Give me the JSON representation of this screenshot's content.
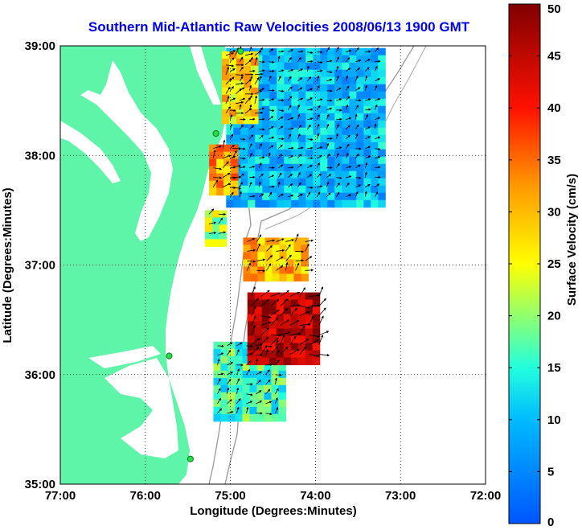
{
  "title": "Southern Mid-Atlantic Raw Velocities 2008/06/13 1900 GMT",
  "map": {
    "xlabel": "Longitude (Degrees:Minutes)",
    "ylabel": "Latitude (Degrees:Minutes)",
    "lon_range": [
      -77,
      -72
    ],
    "lat_range": [
      35,
      39
    ],
    "x_ticks": [
      {
        "value": -77,
        "label": "77:00"
      },
      {
        "value": -76,
        "label": "76:00"
      },
      {
        "value": -75,
        "label": "75:00"
      },
      {
        "value": -74,
        "label": "74:00"
      },
      {
        "value": -73,
        "label": "73:00"
      },
      {
        "value": -72,
        "label": "72:00"
      }
    ],
    "y_ticks": [
      {
        "value": 39,
        "label": "39:00"
      },
      {
        "value": 38,
        "label": "38:00"
      },
      {
        "value": 37,
        "label": "37:00"
      },
      {
        "value": 36,
        "label": "36:00"
      },
      {
        "value": 35,
        "label": "35:00"
      }
    ],
    "grid": "dotted",
    "land_color": "#5ef5a8",
    "stations": [
      {
        "lon": -74.88,
        "lat": 38.95
      },
      {
        "lon": -75.17,
        "lat": 38.2
      },
      {
        "lon": -75.72,
        "lat": 36.17
      },
      {
        "lon": -75.47,
        "lat": 35.23
      }
    ]
  },
  "colorbar": {
    "label": "Surface Velocity (cm/s)",
    "min": 0,
    "max": 50,
    "ticks": [
      {
        "value": 0,
        "label": "0"
      },
      {
        "value": 5,
        "label": "5"
      },
      {
        "value": 10,
        "label": "10"
      },
      {
        "value": 15,
        "label": "15"
      },
      {
        "value": 20,
        "label": "20"
      },
      {
        "value": 25,
        "label": "25"
      },
      {
        "value": 30,
        "label": "30"
      },
      {
        "value": 35,
        "label": "35"
      },
      {
        "value": 40,
        "label": "40"
      },
      {
        "value": 45,
        "label": "45"
      },
      {
        "value": 50,
        "label": "50"
      }
    ]
  },
  "velocity_regions": [
    {
      "id": "north",
      "lon": [
        -75.05,
        -73.25
      ],
      "lat": [
        37.55,
        38.98
      ],
      "speed": 10
    },
    {
      "id": "ne-patch",
      "lon": [
        -75.1,
        -74.7
      ],
      "lat": [
        38.3,
        38.95
      ],
      "speed": 28
    },
    {
      "id": "west-coast",
      "lon": [
        -75.25,
        -74.95
      ],
      "lat": [
        37.7,
        38.1
      ],
      "speed": 32
    },
    {
      "id": "mid-small",
      "lon": [
        -75.3,
        -75.1
      ],
      "lat": [
        37.2,
        37.5
      ],
      "speed": 22
    },
    {
      "id": "mid-band",
      "lon": [
        -74.85,
        -74.1
      ],
      "lat": [
        36.9,
        37.25
      ],
      "speed": 30
    },
    {
      "id": "south",
      "lon": [
        -75.2,
        -74.4
      ],
      "lat": [
        35.6,
        36.3
      ],
      "speed": 16
    },
    {
      "id": "south-red",
      "lon": [
        -74.8,
        -73.95
      ],
      "lat": [
        36.1,
        36.75
      ],
      "speed": 46
    }
  ]
}
